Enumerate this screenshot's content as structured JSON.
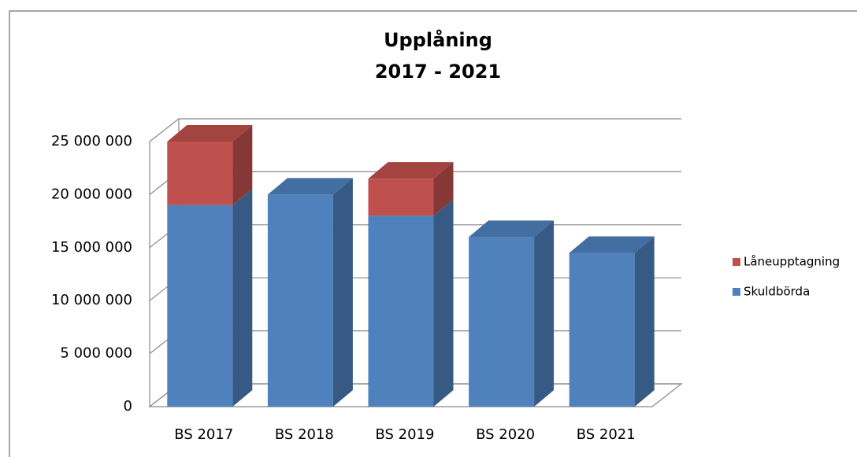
{
  "chart_data": {
    "type": "bar3d_stacked",
    "title": [
      "Upplåning",
      "2017 - 2021"
    ],
    "categories": [
      "BS 2017",
      "BS 2018",
      "BS 2019",
      "BS 2020",
      "BS 2021"
    ],
    "series": [
      {
        "name": "Skuldbörda",
        "color": "#4f81bd",
        "values": [
          19000000,
          20000000,
          18000000,
          16000000,
          14500000
        ]
      },
      {
        "name": "Låneupptagning",
        "color": "#c0504d",
        "values": [
          6000000,
          null,
          3500000,
          null,
          null
        ]
      }
    ],
    "ylim": [
      0,
      25000000
    ],
    "yticks": [
      {
        "value": 0,
        "label": "0"
      },
      {
        "value": 5000000,
        "label": "5 000 000"
      },
      {
        "value": 10000000,
        "label": "10 000 000"
      },
      {
        "value": 15000000,
        "label": "15 000 000"
      },
      {
        "value": 20000000,
        "label": "20 000 000"
      },
      {
        "value": 25000000,
        "label": "25 000 000"
      }
    ],
    "grid": true,
    "legend": "right"
  }
}
